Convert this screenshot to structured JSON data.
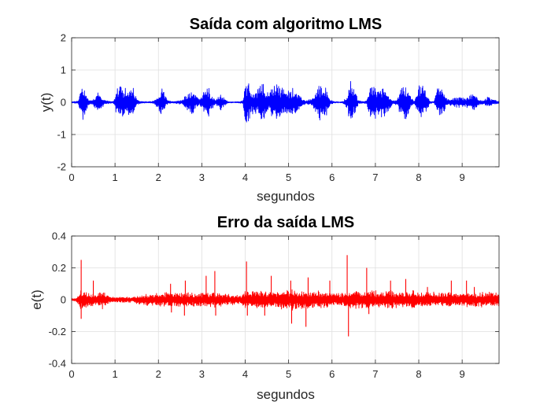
{
  "chart_data": [
    {
      "type": "line",
      "title": "Saída com algoritmo LMS",
      "xlabel": "segundos",
      "ylabel": "y(t)",
      "xlim": [
        0,
        9.85
      ],
      "ylim": [
        -2,
        2
      ],
      "xticks": [
        0,
        1,
        2,
        3,
        4,
        5,
        6,
        7,
        8,
        9
      ],
      "xtick_labels": [
        "0",
        "1",
        "2",
        "3",
        "4",
        "5",
        "6",
        "7",
        "8",
        "9"
      ],
      "yticks": [
        -2,
        -1,
        0,
        1,
        2
      ],
      "ytick_labels": [
        "-2",
        "-1",
        "0",
        "1",
        "2"
      ],
      "grid": true,
      "color": "#0000ff",
      "envelope": {
        "x": [
          0.0,
          0.15,
          0.2,
          0.25,
          0.32,
          0.4,
          0.5,
          0.6,
          0.66,
          0.75,
          0.85,
          0.95,
          1.0,
          1.05,
          1.12,
          1.2,
          1.3,
          1.4,
          1.45,
          1.5,
          1.58,
          1.7,
          1.8,
          1.9,
          2.0,
          2.05,
          2.12,
          2.2,
          2.3,
          2.45,
          2.55,
          2.65,
          2.75,
          2.85,
          2.95,
          3.0,
          3.08,
          3.15,
          3.22,
          3.3,
          3.45,
          3.6,
          3.8,
          3.95,
          4.0,
          4.08,
          4.15,
          4.3,
          4.4,
          4.5,
          4.55,
          4.65,
          4.75,
          4.85,
          4.95,
          5.05,
          5.15,
          5.25,
          5.3,
          5.4,
          5.55,
          5.7,
          5.85,
          5.95,
          6.05,
          6.15,
          6.25,
          6.35,
          6.42,
          6.5,
          6.6,
          6.7,
          6.8,
          6.88,
          6.95,
          7.0,
          7.1,
          7.2,
          7.3,
          7.4,
          7.5,
          7.6,
          7.7,
          7.78,
          7.9,
          8.0,
          8.1,
          8.25,
          8.35,
          8.45,
          8.55,
          8.65,
          8.8,
          8.95,
          9.05,
          9.15,
          9.3,
          9.4,
          9.5,
          9.6,
          9.7,
          9.85
        ],
        "amplitude": [
          0.02,
          0.05,
          0.6,
          0.72,
          0.35,
          0.08,
          0.12,
          0.35,
          0.32,
          0.08,
          0.05,
          0.03,
          0.2,
          0.5,
          0.55,
          0.5,
          0.45,
          0.55,
          0.5,
          0.1,
          0.04,
          0.03,
          0.03,
          0.05,
          0.25,
          0.45,
          0.4,
          0.08,
          0.03,
          0.05,
          0.1,
          0.25,
          0.5,
          0.3,
          0.1,
          0.25,
          0.45,
          0.5,
          0.3,
          0.08,
          0.3,
          0.02,
          0.02,
          0.05,
          0.75,
          0.7,
          0.4,
          0.5,
          0.65,
          0.45,
          0.25,
          0.65,
          0.7,
          0.6,
          0.4,
          0.45,
          0.5,
          0.35,
          0.15,
          0.05,
          0.15,
          0.6,
          0.55,
          0.1,
          0.03,
          0.02,
          0.03,
          0.2,
          0.9,
          0.5,
          0.1,
          0.03,
          0.05,
          0.55,
          0.65,
          0.6,
          0.5,
          0.5,
          0.35,
          0.05,
          0.1,
          0.55,
          0.6,
          0.3,
          0.05,
          0.55,
          0.6,
          0.05,
          0.02,
          0.65,
          0.45,
          0.1,
          0.15,
          0.2,
          0.12,
          0.22,
          0.3,
          0.1,
          0.05,
          0.2,
          0.1,
          0.05
        ]
      }
    },
    {
      "type": "line",
      "title": "Erro da saída LMS",
      "xlabel": "segundos",
      "ylabel": "e(t)",
      "xlim": [
        0,
        9.85
      ],
      "ylim": [
        -0.4,
        0.4
      ],
      "xticks": [
        0,
        1,
        2,
        3,
        4,
        5,
        6,
        7,
        8,
        9
      ],
      "xtick_labels": [
        "0",
        "1",
        "2",
        "3",
        "4",
        "5",
        "6",
        "7",
        "8",
        "9"
      ],
      "yticks": [
        -0.4,
        -0.2,
        0,
        0.2,
        0.4
      ],
      "ytick_labels": [
        "-0.4",
        "-0.2",
        "0",
        "0.2",
        "0.4"
      ],
      "grid": true,
      "color": "#ff0000",
      "envelope": {
        "x": [
          0.0,
          0.1,
          0.2,
          0.3,
          0.4,
          0.5,
          0.6,
          0.7,
          0.8,
          0.9,
          1.0,
          1.1,
          1.2,
          1.3,
          1.4,
          1.5,
          1.6,
          1.7,
          1.8,
          1.9,
          2.0,
          2.1,
          2.2,
          2.3,
          2.4,
          2.5,
          2.6,
          2.7,
          2.8,
          2.9,
          3.0,
          3.1,
          3.2,
          3.3,
          3.4,
          3.5,
          3.6,
          3.7,
          3.8,
          3.9,
          4.0,
          4.1,
          4.2,
          4.3,
          4.4,
          4.5,
          4.6,
          4.7,
          4.8,
          4.9,
          5.0,
          5.1,
          5.2,
          5.3,
          5.4,
          5.5,
          5.6,
          5.7,
          5.8,
          5.9,
          6.0,
          6.1,
          6.2,
          6.3,
          6.4,
          6.5,
          6.6,
          6.7,
          6.8,
          6.9,
          7.0,
          7.1,
          7.2,
          7.3,
          7.4,
          7.5,
          7.6,
          7.7,
          7.8,
          7.9,
          8.0,
          8.1,
          8.2,
          8.3,
          8.4,
          8.5,
          8.6,
          8.7,
          8.8,
          8.9,
          9.0,
          9.1,
          9.2,
          9.3,
          9.4,
          9.5,
          9.6,
          9.7,
          9.85
        ],
        "amplitude": [
          0.01,
          0.01,
          0.07,
          0.06,
          0.05,
          0.05,
          0.05,
          0.07,
          0.03,
          0.02,
          0.02,
          0.02,
          0.02,
          0.02,
          0.02,
          0.03,
          0.03,
          0.04,
          0.04,
          0.04,
          0.05,
          0.05,
          0.05,
          0.05,
          0.05,
          0.05,
          0.05,
          0.05,
          0.05,
          0.05,
          0.05,
          0.05,
          0.05,
          0.05,
          0.05,
          0.04,
          0.04,
          0.04,
          0.03,
          0.03,
          0.06,
          0.06,
          0.06,
          0.06,
          0.06,
          0.06,
          0.06,
          0.06,
          0.06,
          0.06,
          0.07,
          0.07,
          0.07,
          0.07,
          0.07,
          0.06,
          0.06,
          0.06,
          0.06,
          0.06,
          0.04,
          0.05,
          0.05,
          0.05,
          0.06,
          0.06,
          0.06,
          0.06,
          0.06,
          0.06,
          0.06,
          0.06,
          0.06,
          0.06,
          0.06,
          0.06,
          0.06,
          0.06,
          0.06,
          0.06,
          0.05,
          0.05,
          0.05,
          0.05,
          0.05,
          0.05,
          0.05,
          0.05,
          0.05,
          0.05,
          0.05,
          0.05,
          0.05,
          0.05,
          0.05,
          0.05,
          0.05,
          0.05,
          0.05
        ]
      },
      "spikes": [
        {
          "x": 0.22,
          "y": 0.25
        },
        {
          "x": 0.22,
          "y": -0.12
        },
        {
          "x": 0.5,
          "y": 0.12
        },
        {
          "x": 2.28,
          "y": 0.1
        },
        {
          "x": 2.3,
          "y": -0.08
        },
        {
          "x": 2.6,
          "y": -0.1
        },
        {
          "x": 2.62,
          "y": 0.12
        },
        {
          "x": 3.1,
          "y": 0.15
        },
        {
          "x": 3.3,
          "y": 0.18
        },
        {
          "x": 3.32,
          "y": -0.1
        },
        {
          "x": 4.03,
          "y": 0.24
        },
        {
          "x": 4.05,
          "y": -0.1
        },
        {
          "x": 4.45,
          "y": -0.1
        },
        {
          "x": 4.6,
          "y": 0.15
        },
        {
          "x": 5.05,
          "y": 0.12
        },
        {
          "x": 5.07,
          "y": -0.15
        },
        {
          "x": 5.4,
          "y": -0.17
        },
        {
          "x": 5.45,
          "y": 0.14
        },
        {
          "x": 5.95,
          "y": 0.12
        },
        {
          "x": 6.35,
          "y": 0.28
        },
        {
          "x": 6.38,
          "y": -0.23
        },
        {
          "x": 6.8,
          "y": 0.2
        },
        {
          "x": 6.85,
          "y": -0.09
        },
        {
          "x": 7.35,
          "y": 0.12
        },
        {
          "x": 7.7,
          "y": 0.13
        },
        {
          "x": 8.2,
          "y": 0.08
        },
        {
          "x": 8.75,
          "y": 0.12
        },
        {
          "x": 9.1,
          "y": 0.12
        },
        {
          "x": 9.28,
          "y": 0.08
        }
      ]
    }
  ]
}
